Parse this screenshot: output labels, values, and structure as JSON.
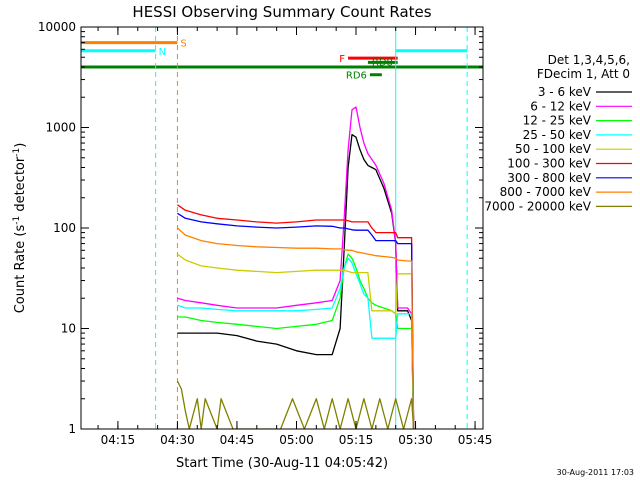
{
  "chart_data": {
    "type": "line",
    "title": "HESSI Observing Summary Count Rates",
    "xlabel": "Start Time (30-Aug-11 04:05:42)",
    "ylabel_main": "Count Rate (s",
    "ylabel_sup1": "-1",
    "ylabel_mid": " detector",
    "ylabel_sup2": "-1",
    "ylabel_end": ")",
    "y_scale": "log",
    "ylim": [
      1,
      10000
    ],
    "xlim": [
      "04:05:42",
      "05:47:00"
    ],
    "x_ticks": [
      "04:15",
      "04:30",
      "04:45",
      "05:00",
      "05:15",
      "05:30",
      "05:45"
    ],
    "y_ticks": [
      "1",
      "10",
      "100",
      "1000",
      "10000"
    ],
    "timestamp": "30-Aug-2011 17:03",
    "legend": {
      "header_line1": "Det 1,3,4,5,6,",
      "header_line2": "FDecim 1, Att 0",
      "entries": [
        {
          "label": "3 - 6 keV",
          "color": "#000000"
        },
        {
          "label": "6 - 12 keV",
          "color": "#ff00ff"
        },
        {
          "label": "12 - 25 keV",
          "color": "#00ff00"
        },
        {
          "label": "25 - 50 keV",
          "color": "#00ffff"
        },
        {
          "label": "50 - 100 keV",
          "color": "#cccc00"
        },
        {
          "label": "100 - 300 keV",
          "color": "#ff0000"
        },
        {
          "label": "300 - 800 keV",
          "color": "#0000ff"
        },
        {
          "label": "800 - 7000 keV",
          "color": "#ff8000"
        },
        {
          "label": "7000 - 20000 keV",
          "color": "#808000"
        }
      ]
    },
    "flag_bars": [
      {
        "label": "S",
        "color": "#ff8000",
        "start": "04:05:42",
        "end": "04:30:00",
        "y": 7000
      },
      {
        "label": "N",
        "color": "#00ffff",
        "start": "04:05:42",
        "end": "04:24:30",
        "y": 5800
      },
      {
        "label": "",
        "color": "#00ffff",
        "start": "05:25:00",
        "end": "05:43:00",
        "y": 5800
      },
      {
        "label": "",
        "color": "#008000",
        "start": "04:05:42",
        "end": "05:47:00",
        "y": 4000
      },
      {
        "label": "F",
        "color": "#ff0000",
        "start": "05:13:00",
        "end": "05:25:30",
        "y": 4900
      },
      {
        "label": "RD8",
        "color": "#008000",
        "start": "05:18:00",
        "end": "05:25:30",
        "y": 4450
      },
      {
        "label": "RD6",
        "color": "#008000",
        "start": "05:18:30",
        "end": "05:21:30",
        "y": 3350
      }
    ],
    "vlines": [
      {
        "time": "04:05:42",
        "color": "#00ffff",
        "dashed": false
      },
      {
        "time": "04:24:30",
        "color": "#00ffff",
        "dashed": true
      },
      {
        "time": "04:30:00",
        "color": "#ff8000",
        "dashed": true
      },
      {
        "time": "05:25:00",
        "color": "#00ffff",
        "dashed": false
      },
      {
        "time": "05:43:00",
        "color": "#00ffff",
        "dashed": true
      }
    ],
    "series": [
      {
        "name": "3 - 6 keV",
        "color": "#000000",
        "x": [
          "04:30:00",
          "04:32:00",
          "04:36:00",
          "04:40:00",
          "04:45:00",
          "04:50:00",
          "04:55:00",
          "05:00:00",
          "05:05:00",
          "05:09:00",
          "05:11:00",
          "05:12:00",
          "05:13:00",
          "05:14:00",
          "05:15:00",
          "05:16:00",
          "05:17:00",
          "05:18:00",
          "05:19:00",
          "05:20:00",
          "05:22:00",
          "05:24:00",
          "05:25:00",
          "05:25:30",
          "05:28:00",
          "05:29:00",
          "05:29:30"
        ],
        "y": [
          9,
          9,
          9,
          9,
          8.5,
          7.5,
          7,
          6,
          5.5,
          5.5,
          10,
          60,
          400,
          850,
          800,
          600,
          480,
          420,
          400,
          380,
          250,
          140,
          70,
          15,
          15,
          12,
          1
        ]
      },
      {
        "name": "6 - 12 keV",
        "color": "#ff00ff",
        "x": [
          "04:30:00",
          "04:32:00",
          "04:36:00",
          "04:40:00",
          "04:45:00",
          "04:50:00",
          "04:55:00",
          "05:00:00",
          "05:05:00",
          "05:09:00",
          "05:11:00",
          "05:12:00",
          "05:13:00",
          "05:14:00",
          "05:15:00",
          "05:16:00",
          "05:17:00",
          "05:18:00",
          "05:19:00",
          "05:20:00",
          "05:22:00",
          "05:24:00",
          "05:25:00",
          "05:25:30",
          "05:28:00",
          "05:29:00",
          "05:29:30"
        ],
        "y": [
          20,
          19,
          18,
          17,
          16,
          16,
          16,
          17,
          18,
          19,
          30,
          120,
          600,
          1500,
          1600,
          1000,
          700,
          550,
          480,
          420,
          280,
          150,
          70,
          16,
          16,
          14,
          1
        ]
      },
      {
        "name": "12 - 25 keV",
        "color": "#00ff00",
        "x": [
          "04:30:00",
          "04:32:00",
          "04:36:00",
          "04:40:00",
          "04:45:00",
          "04:50:00",
          "04:55:00",
          "05:00:00",
          "05:05:00",
          "05:09:00",
          "05:11:00",
          "05:12:00",
          "05:13:00",
          "05:14:00",
          "05:15:00",
          "05:16:00",
          "05:17:00",
          "05:18:00",
          "05:19:00",
          "05:20:00",
          "05:22:00",
          "05:24:00",
          "05:25:00",
          "05:25:30",
          "05:28:00",
          "05:29:00",
          "05:29:30"
        ],
        "y": [
          13,
          13,
          12,
          11.5,
          11,
          10.5,
          10,
          10.5,
          11,
          12,
          20,
          40,
          55,
          50,
          40,
          30,
          25,
          20,
          18,
          17,
          16,
          15,
          14,
          10,
          10,
          10,
          1
        ]
      },
      {
        "name": "25 - 50 keV",
        "color": "#00ffff",
        "x": [
          "04:30:00",
          "04:32:00",
          "04:36:00",
          "04:40:00",
          "04:45:00",
          "04:50:00",
          "04:55:00",
          "05:00:00",
          "05:05:00",
          "05:09:00",
          "05:11:00",
          "05:12:00",
          "05:13:00",
          "05:14:00",
          "05:15:00",
          "05:16:00",
          "05:17:00",
          "05:18:00",
          "05:19:00",
          "05:20:00",
          "05:22:00",
          "05:24:00",
          "05:25:00",
          "05:25:30",
          "05:28:00",
          "05:29:00",
          "05:29:30"
        ],
        "y": [
          17,
          16,
          16,
          15.5,
          15,
          15,
          15,
          15,
          15.5,
          16,
          25,
          40,
          50,
          45,
          35,
          28,
          22,
          20,
          8,
          8,
          8,
          8,
          8,
          14,
          14,
          14,
          1
        ]
      },
      {
        "name": "50 - 100 keV",
        "color": "#cccc00",
        "x": [
          "04:30:00",
          "04:32:00",
          "04:36:00",
          "04:40:00",
          "04:45:00",
          "04:50:00",
          "04:55:00",
          "05:00:00",
          "05:05:00",
          "05:09:00",
          "05:11:00",
          "05:12:00",
          "05:13:00",
          "05:14:00",
          "05:15:00",
          "05:16:00",
          "05:17:00",
          "05:18:00",
          "05:19:00",
          "05:20:00",
          "05:22:00",
          "05:24:00",
          "05:25:00",
          "05:25:30",
          "05:28:00",
          "05:29:00",
          "05:29:30"
        ],
        "y": [
          55,
          48,
          42,
          40,
          38,
          37,
          36,
          37,
          38,
          38,
          38,
          38,
          37,
          36,
          36,
          36,
          36,
          36,
          15,
          15,
          15,
          15,
          14,
          35,
          35,
          35,
          1
        ]
      },
      {
        "name": "100 - 300 keV",
        "color": "#ff0000",
        "x": [
          "04:30:00",
          "04:32:00",
          "04:36:00",
          "04:40:00",
          "04:45:00",
          "04:50:00",
          "04:55:00",
          "05:00:00",
          "05:05:00",
          "05:09:00",
          "05:11:00",
          "05:12:00",
          "05:13:00",
          "05:14:00",
          "05:15:00",
          "05:16:00",
          "05:17:00",
          "05:18:00",
          "05:19:00",
          "05:20:00",
          "05:22:00",
          "05:24:00",
          "05:25:00",
          "05:25:30",
          "05:28:00",
          "05:29:00",
          "05:29:30"
        ],
        "y": [
          170,
          150,
          135,
          125,
          120,
          115,
          112,
          115,
          120,
          120,
          120,
          120,
          118,
          115,
          115,
          115,
          115,
          115,
          100,
          90,
          90,
          90,
          90,
          80,
          80,
          80,
          1
        ]
      },
      {
        "name": "300 - 800 keV",
        "color": "#0000ff",
        "x": [
          "04:30:00",
          "04:32:00",
          "04:36:00",
          "04:40:00",
          "04:45:00",
          "04:50:00",
          "04:55:00",
          "05:00:00",
          "05:05:00",
          "05:09:00",
          "05:11:00",
          "05:12:00",
          "05:13:00",
          "05:14:00",
          "05:15:00",
          "05:16:00",
          "05:17:00",
          "05:18:00",
          "05:19:00",
          "05:20:00",
          "05:22:00",
          "05:24:00",
          "05:25:00",
          "05:25:30",
          "05:28:00",
          "05:29:00",
          "05:29:30"
        ],
        "y": [
          140,
          125,
          115,
          110,
          105,
          102,
          100,
          102,
          105,
          104,
          100,
          100,
          98,
          96,
          95,
          95,
          95,
          95,
          85,
          75,
          75,
          75,
          75,
          70,
          70,
          70,
          1
        ]
      },
      {
        "name": "800 - 7000 keV",
        "color": "#ff8000",
        "x": [
          "04:30:00",
          "04:32:00",
          "04:36:00",
          "04:40:00",
          "04:45:00",
          "04:50:00",
          "04:55:00",
          "05:00:00",
          "05:05:00",
          "05:09:00",
          "05:11:00",
          "05:12:00",
          "05:13:00",
          "05:14:00",
          "05:15:00",
          "05:16:00",
          "05:17:00",
          "05:18:00",
          "05:19:00",
          "05:20:00",
          "05:22:00",
          "05:24:00",
          "05:25:00",
          "05:25:30",
          "05:28:00",
          "05:29:00",
          "05:29:30"
        ],
        "y": [
          100,
          85,
          75,
          70,
          67,
          65,
          64,
          63,
          63,
          62,
          62,
          61,
          60,
          60,
          58,
          57,
          56,
          55,
          54,
          53,
          52,
          51,
          50,
          48,
          47,
          47,
          1
        ]
      },
      {
        "name": "7000 - 20000 keV",
        "color": "#808000",
        "x": [
          "04:30:00",
          "04:31:00",
          "04:32:00",
          "04:33:00",
          "04:35:00",
          "04:36:00",
          "04:37:00",
          "04:40:00",
          "04:41:00",
          "04:44:00",
          "04:46:00",
          "04:48:00",
          "04:50:00",
          "04:52:00",
          "04:54:00",
          "04:56:00",
          "04:59:00",
          "05:02:00",
          "05:05:00",
          "05:07:00",
          "05:09:00",
          "05:11:00",
          "05:13:00",
          "05:15:00",
          "05:17:00",
          "05:19:00",
          "05:21:00",
          "05:23:00",
          "05:25:00",
          "05:27:00",
          "05:29:00",
          "05:29:30"
        ],
        "y": [
          3,
          2.5,
          1.5,
          1,
          2,
          1,
          2,
          1,
          2,
          1,
          1,
          1,
          1,
          1,
          1,
          1,
          2,
          1,
          2,
          1,
          2,
          1,
          2,
          1,
          2,
          1,
          2,
          1,
          2,
          1,
          2,
          1
        ]
      }
    ]
  }
}
